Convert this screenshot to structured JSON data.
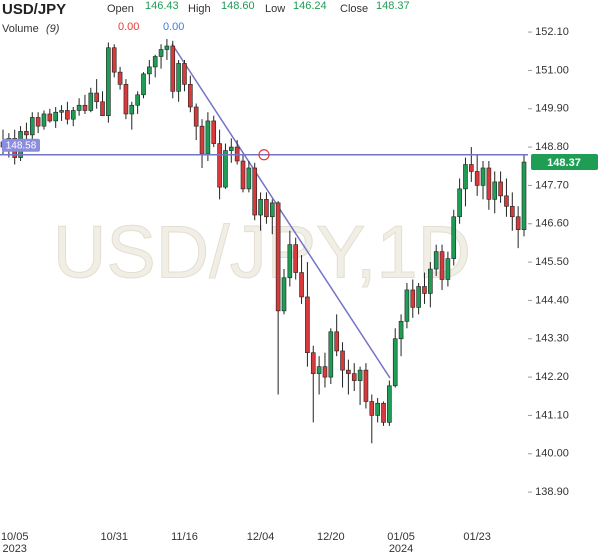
{
  "chart_data": {
    "type": "candlestick",
    "title": "USD/JPY",
    "watermark": "USD/JPY,1D",
    "ohlc_names": {
      "open": "Open",
      "high": "High",
      "low": "Low",
      "close": "Close"
    },
    "ohlc_labels": {
      "open": "146.43",
      "high": "148.60",
      "low": "146.24",
      "close": "148.37"
    },
    "volume": {
      "name": "Volume",
      "period": "(9)",
      "values": [
        "0.00",
        "0.00"
      ],
      "colors": [
        "#e03c3c",
        "#3c7fe0"
      ]
    },
    "up_color": "#1f9d55",
    "down_color": "#d63a3a",
    "ylim": [
      137.87,
      153.02
    ],
    "yticks": [
      {
        "value": 152.1,
        "label": "152.10"
      },
      {
        "value": 151,
        "label": "151.00"
      },
      {
        "value": 149.9,
        "label": "149.90"
      },
      {
        "value": 148.8,
        "label": "148.80"
      },
      {
        "value": 147.7,
        "label": "147.70"
      },
      {
        "value": 146.6,
        "label": "146.60"
      },
      {
        "value": 145.5,
        "label": "145.50"
      },
      {
        "value": 144.4,
        "label": "144.40"
      },
      {
        "value": 143.3,
        "label": "143.30"
      },
      {
        "value": 142.2,
        "label": "142.20"
      },
      {
        "value": 141.1,
        "label": "141.10"
      },
      {
        "value": 140,
        "label": "140.00"
      },
      {
        "value": 138.9,
        "label": "138.90"
      }
    ],
    "hline": {
      "value": 148.58,
      "color": "#7373c9"
    },
    "categories": [
      null,
      null,
      "10/05",
      null,
      null,
      null,
      null,
      null,
      null,
      null,
      null,
      null,
      null,
      null,
      null,
      null,
      null,
      null,
      null,
      "10/31",
      null,
      null,
      null,
      null,
      null,
      null,
      null,
      null,
      null,
      null,
      null,
      "11/16",
      null,
      null,
      null,
      null,
      null,
      null,
      null,
      null,
      null,
      null,
      null,
      null,
      "12/04",
      null,
      null,
      null,
      null,
      null,
      null,
      null,
      null,
      null,
      null,
      null,
      "12/20",
      null,
      null,
      null,
      null,
      null,
      null,
      null,
      null,
      null,
      null,
      null,
      "01/05",
      null,
      null,
      null,
      null,
      null,
      null,
      null,
      null,
      null,
      null,
      null,
      null,
      "01/23",
      null,
      null,
      null,
      null,
      null,
      null,
      null,
      null
    ],
    "year_labels": [
      null,
      null,
      "2023",
      null,
      null,
      null,
      null,
      null,
      null,
      null,
      null,
      null,
      null,
      null,
      null,
      null,
      null,
      null,
      null,
      null,
      null,
      null,
      null,
      null,
      null,
      null,
      null,
      null,
      null,
      null,
      null,
      null,
      null,
      null,
      null,
      null,
      null,
      null,
      null,
      null,
      null,
      null,
      null,
      null,
      null,
      null,
      null,
      null,
      null,
      null,
      null,
      null,
      null,
      null,
      null,
      null,
      null,
      null,
      null,
      null,
      null,
      null,
      null,
      null,
      null,
      null,
      null,
      null,
      "2024",
      null,
      null,
      null,
      null,
      null,
      null,
      null,
      null,
      null,
      null,
      null,
      null,
      null,
      null,
      null,
      null,
      null,
      null,
      null,
      null,
      null
    ],
    "ohlc": [
      [
        148.95,
        149.3,
        148.6,
        148.8
      ],
      [
        148.8,
        149.2,
        148.5,
        149.05
      ],
      [
        149.05,
        149.3,
        148.3,
        148.5
      ],
      [
        148.5,
        149.4,
        148.4,
        149.25
      ],
      [
        149.25,
        149.5,
        148.9,
        149.15
      ],
      [
        149.15,
        149.8,
        149.0,
        149.65
      ],
      [
        149.65,
        149.8,
        149.2,
        149.4
      ],
      [
        149.4,
        149.85,
        149.3,
        149.75
      ],
      [
        149.75,
        149.9,
        149.5,
        149.55
      ],
      [
        149.55,
        149.95,
        149.35,
        149.8
      ],
      [
        149.8,
        150.0,
        149.55,
        149.85
      ],
      [
        149.85,
        150.1,
        149.45,
        149.6
      ],
      [
        149.6,
        149.95,
        149.4,
        149.85
      ],
      [
        149.85,
        150.2,
        149.7,
        150.0
      ],
      [
        150.0,
        150.3,
        149.75,
        149.85
      ],
      [
        149.85,
        150.5,
        149.8,
        150.35
      ],
      [
        150.35,
        150.75,
        149.9,
        150.1
      ],
      [
        150.1,
        150.4,
        149.7,
        149.7
      ],
      [
        149.7,
        151.8,
        149.5,
        151.65
      ],
      [
        151.65,
        151.75,
        150.8,
        150.95
      ],
      [
        150.95,
        151.1,
        150.45,
        150.6
      ],
      [
        150.6,
        150.75,
        149.6,
        149.75
      ],
      [
        149.75,
        150.1,
        149.3,
        150.0
      ],
      [
        150.0,
        150.4,
        149.75,
        150.3
      ],
      [
        150.3,
        150.95,
        150.2,
        150.9
      ],
      [
        150.9,
        151.3,
        150.6,
        151.1
      ],
      [
        151.1,
        151.45,
        150.8,
        151.4
      ],
      [
        151.4,
        151.75,
        151.05,
        151.6
      ],
      [
        151.6,
        151.9,
        151.3,
        151.7
      ],
      [
        151.7,
        151.85,
        150.2,
        150.4
      ],
      [
        150.4,
        151.3,
        150.1,
        151.2
      ],
      [
        151.2,
        151.3,
        150.4,
        150.6
      ],
      [
        150.6,
        150.85,
        149.8,
        149.95
      ],
      [
        149.95,
        150.05,
        149.0,
        149.4
      ],
      [
        149.4,
        149.6,
        148.2,
        148.6
      ],
      [
        148.6,
        149.8,
        148.4,
        149.55
      ],
      [
        149.55,
        149.7,
        148.8,
        148.9
      ],
      [
        148.9,
        149.3,
        147.3,
        147.65
      ],
      [
        147.65,
        148.9,
        147.6,
        148.7
      ],
      [
        148.7,
        149.05,
        148.35,
        148.8
      ],
      [
        148.8,
        149.0,
        148.3,
        148.4
      ],
      [
        148.4,
        148.6,
        147.5,
        147.6
      ],
      [
        147.6,
        148.4,
        147.5,
        148.2
      ],
      [
        148.2,
        148.35,
        146.7,
        146.85
      ],
      [
        146.85,
        147.5,
        146.4,
        147.3
      ],
      [
        147.3,
        147.5,
        146.6,
        146.8
      ],
      [
        146.8,
        147.3,
        146.3,
        147.2
      ],
      [
        147.2,
        147.25,
        141.7,
        144.1
      ],
      [
        144.1,
        145.3,
        144.0,
        145.05
      ],
      [
        145.05,
        146.4,
        144.8,
        146.0
      ],
      [
        146.0,
        146.2,
        145.0,
        145.2
      ],
      [
        145.2,
        145.7,
        144.3,
        144.5
      ],
      [
        144.5,
        145.5,
        142.5,
        142.9
      ],
      [
        142.9,
        143.1,
        140.9,
        142.3
      ],
      [
        142.3,
        142.8,
        141.7,
        142.5
      ],
      [
        142.5,
        142.9,
        141.9,
        142.2
      ],
      [
        142.2,
        143.6,
        142.0,
        143.5
      ],
      [
        143.5,
        144.0,
        142.8,
        142.95
      ],
      [
        142.95,
        143.2,
        141.9,
        142.4
      ],
      [
        142.4,
        142.7,
        141.7,
        142.3
      ],
      [
        142.3,
        142.6,
        141.8,
        142.1
      ],
      [
        142.1,
        142.5,
        141.4,
        142.4
      ],
      [
        142.4,
        142.6,
        141.3,
        141.5
      ],
      [
        141.5,
        141.7,
        140.3,
        141.1
      ],
      [
        141.1,
        141.6,
        140.9,
        141.45
      ],
      [
        141.45,
        141.5,
        140.8,
        140.9
      ],
      [
        140.9,
        142.1,
        140.8,
        141.95
      ],
      [
        141.95,
        143.6,
        141.9,
        143.3
      ],
      [
        143.3,
        144.0,
        142.8,
        143.8
      ],
      [
        143.8,
        144.9,
        143.6,
        144.7
      ],
      [
        144.7,
        145.0,
        143.9,
        144.2
      ],
      [
        144.2,
        144.9,
        144.0,
        144.8
      ],
      [
        144.8,
        145.2,
        144.3,
        144.6
      ],
      [
        144.6,
        145.5,
        144.2,
        145.3
      ],
      [
        145.3,
        146.0,
        145.1,
        145.8
      ],
      [
        145.8,
        146.0,
        144.7,
        145.0
      ],
      [
        145.0,
        145.8,
        144.8,
        145.6
      ],
      [
        145.6,
        147.0,
        145.4,
        146.8
      ],
      [
        146.8,
        147.9,
        146.6,
        147.6
      ],
      [
        147.6,
        148.5,
        147.1,
        148.3
      ],
      [
        148.3,
        148.8,
        147.8,
        148.1
      ],
      [
        148.1,
        148.6,
        147.4,
        147.7
      ],
      [
        147.7,
        148.4,
        147.3,
        148.2
      ],
      [
        148.2,
        148.4,
        147.0,
        147.3
      ],
      [
        147.3,
        148.1,
        146.9,
        147.8
      ],
      [
        147.8,
        148.1,
        147.2,
        147.4
      ],
      [
        147.4,
        147.9,
        146.8,
        147.1
      ],
      [
        147.1,
        147.5,
        146.4,
        146.8
      ],
      [
        146.8,
        147.1,
        145.9,
        146.43
      ],
      [
        146.43,
        148.6,
        146.24,
        148.37
      ]
    ]
  }
}
